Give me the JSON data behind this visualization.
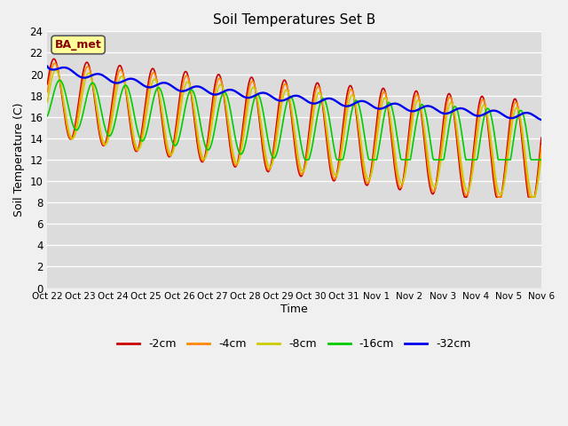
{
  "title": "Soil Temperatures Set B",
  "xlabel": "Time",
  "ylabel": "Soil Temperature (C)",
  "annotation": "BA_met",
  "annotation_color": "#8B0000",
  "annotation_bg": "#FFFF99",
  "ylim": [
    0,
    24
  ],
  "yticks": [
    0,
    2,
    4,
    6,
    8,
    10,
    12,
    14,
    16,
    18,
    20,
    22,
    24
  ],
  "xtick_labels": [
    "Oct 22",
    "Oct 23",
    "Oct 24",
    "Oct 25",
    "Oct 26",
    "Oct 27",
    "Oct 28",
    "Oct 29",
    "Oct 30",
    "Oct 31",
    "Nov 1",
    "Nov 2",
    "Nov 3",
    "Nov 4",
    "Nov 5",
    "Nov 6"
  ],
  "legend_labels": [
    "-2cm",
    "-4cm",
    "-8cm",
    "-16cm",
    "-32cm"
  ],
  "legend_colors": [
    "#CC0000",
    "#FF8800",
    "#CCCC00",
    "#00CC00",
    "#0000EE"
  ],
  "fig_facecolor": "#F0F0F0",
  "plot_facecolor": "#DCDCDC",
  "grid_color": "#FFFFFF"
}
